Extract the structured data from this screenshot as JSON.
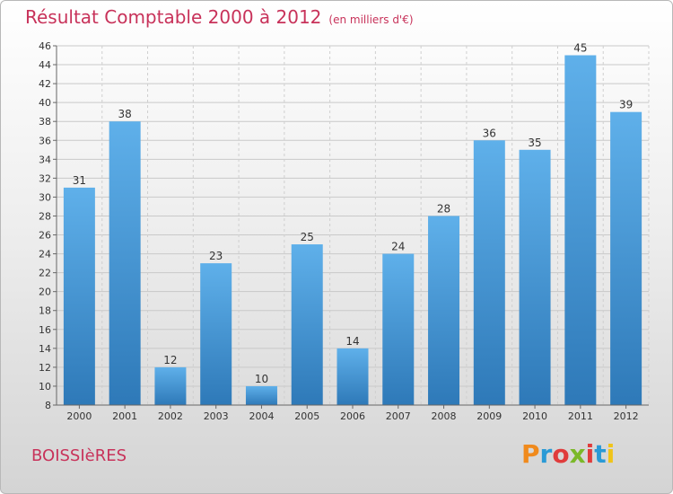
{
  "header": {
    "title": "Résultat Comptable 2000 à 2012",
    "unit": "(en milliers d'€)"
  },
  "footer": {
    "commune": "BOISSIèRES",
    "logo": "Proxiti",
    "logo_colors": [
      "#f08a1c",
      "#2a9ad6",
      "#e03c3c",
      "#7bb829",
      "#e03c3c",
      "#2a9ad6",
      "#f0c419"
    ]
  },
  "colors": {
    "title": "#c8325a",
    "bar_top": "#5fb0ea",
    "bar_bottom": "#2e79b8"
  },
  "chart_data": {
    "type": "bar",
    "title": "Résultat Comptable 2000 à 2012",
    "categories": [
      "2000",
      "2001",
      "2002",
      "2003",
      "2004",
      "2005",
      "2006",
      "2007",
      "2008",
      "2009",
      "2010",
      "2011",
      "2012"
    ],
    "values": [
      31,
      38,
      12,
      23,
      10,
      25,
      14,
      24,
      28,
      36,
      35,
      45,
      39
    ],
    "ylim": [
      8,
      46
    ],
    "yticks": [
      8,
      10,
      12,
      14,
      16,
      18,
      20,
      22,
      24,
      26,
      28,
      30,
      32,
      34,
      36,
      38,
      40,
      42,
      44,
      46
    ],
    "grid": true
  }
}
